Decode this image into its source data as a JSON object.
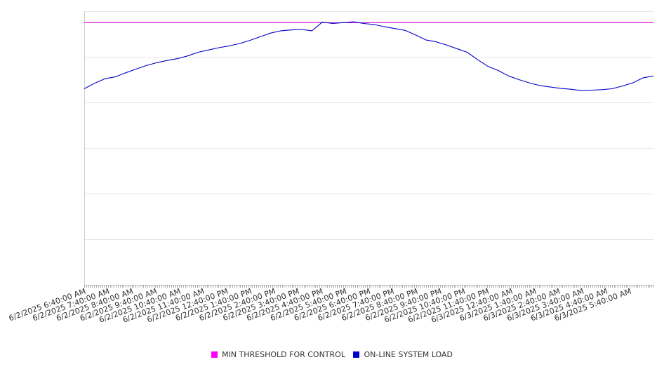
{
  "chart_data": {
    "type": "line",
    "title": "",
    "xlabel": "",
    "ylabel": "",
    "x_start": "6/2/2025 6:40:00 AM",
    "x_end": "6/3/2025 6:40:00 AM",
    "x_tick_labels": [
      "6/2/2025 6:40:00 AM",
      "6/2/2025 7:40:00 AM",
      "6/2/2025 8:40:00 AM",
      "6/2/2025 9:40:00 AM",
      "6/2/2025 10:40:00 AM",
      "6/2/2025 11:40:00 AM",
      "6/2/2025 12:40:00 PM",
      "6/2/2025 1:40:00 PM",
      "6/2/2025 2:40:00 PM",
      "6/2/2025 3:40:00 PM",
      "6/2/2025 4:40:00 PM",
      "6/2/2025 5:40:00 PM",
      "6/2/2025 6:40:00 PM",
      "6/2/2025 7:40:00 PM",
      "6/2/2025 8:40:00 PM",
      "6/2/2025 9:40:00 PM",
      "6/2/2025 10:40:00 PM",
      "6/2/2025 11:40:00 PM",
      "6/3/2025 12:40:00 AM",
      "6/3/2025 1:40:00 AM",
      "6/3/2025 2:40:00 AM",
      "6/3/2025 3:40:00 AM",
      "6/3/2025 4:40:00 AM",
      "6/3/2025 5:40:00 AM"
    ],
    "y_tick_labels": [],
    "ylim": [
      0,
      6
    ],
    "grid": true,
    "legend_position": "bottom-center",
    "series": [
      {
        "name": "MIN THRESHOLD FOR CONTROL",
        "color": "#cc00cc",
        "values": [
          5.75,
          5.75
        ]
      },
      {
        "name": "ON-LINE SYSTEM LOAD",
        "color": "#0000cc",
        "values": [
          4.3,
          4.42,
          4.52,
          4.56,
          4.65,
          4.73,
          4.81,
          4.87,
          4.92,
          4.96,
          5.02,
          5.1,
          5.15,
          5.2,
          5.24,
          5.29,
          5.36,
          5.44,
          5.52,
          5.57,
          5.59,
          5.6,
          5.57,
          5.76,
          5.73,
          5.75,
          5.77,
          5.73,
          5.71,
          5.66,
          5.62,
          5.58,
          5.48,
          5.37,
          5.33,
          5.26,
          5.18,
          5.1,
          4.94,
          4.79,
          4.7,
          4.58,
          4.5,
          4.43,
          4.37,
          4.34,
          4.31,
          4.29,
          4.26,
          4.27,
          4.28,
          4.3,
          4.36,
          4.43,
          4.54,
          4.58
        ]
      }
    ]
  }
}
